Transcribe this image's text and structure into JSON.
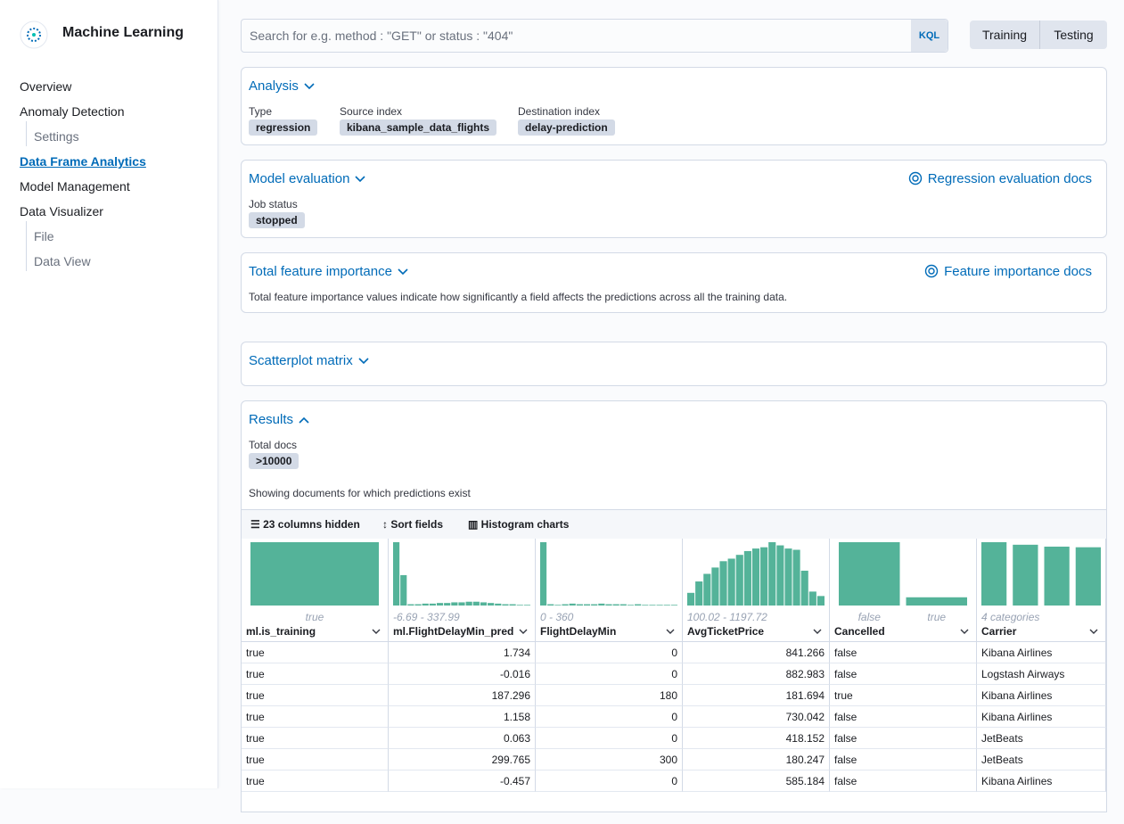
{
  "sidebar": {
    "app_title": "Machine Learning",
    "nav": [
      "Overview",
      "Anomaly Detection",
      "Settings",
      "Data Frame Analytics",
      "Model Management",
      "Data Visualizer",
      "File",
      "Data View"
    ]
  },
  "search": {
    "placeholder": "Search for e.g. method : \"GET\" or status : \"404\"",
    "language": "KQL",
    "filters": [
      "Training",
      "Testing"
    ]
  },
  "analysis": {
    "title": "Analysis",
    "fields": [
      {
        "label": "Type",
        "value": "regression"
      },
      {
        "label": "Source index",
        "value": "kibana_sample_data_flights"
      },
      {
        "label": "Destination index",
        "value": "delay-prediction"
      }
    ]
  },
  "model_evaluation": {
    "title": "Model evaluation",
    "link": "Regression evaluation docs",
    "status_label": "Job status",
    "status": "stopped"
  },
  "feature_importance": {
    "title": "Total feature importance",
    "link": "Feature importance docs",
    "description": "Total feature importance values indicate how significantly a field affects the predictions across all the training data."
  },
  "scatterplot": {
    "title": "Scatterplot matrix"
  },
  "results": {
    "title": "Results",
    "total_label": "Total docs",
    "total": ">10000",
    "note": "Showing documents for which predictions exist",
    "toolbar": [
      "23 columns hidden",
      "Sort fields",
      "Histogram charts"
    ],
    "columns": [
      {
        "name": "ml.is_training",
        "labels": [
          "true"
        ],
        "histogram": [
          100
        ]
      },
      {
        "name": "ml.FlightDelayMin_prediction",
        "labels": [
          "-6.69 - 337.99"
        ],
        "histogram": [
          100,
          48,
          2,
          2,
          3,
          3,
          4,
          4,
          5,
          5,
          6,
          6,
          5,
          4,
          3,
          2,
          2,
          1,
          1
        ]
      },
      {
        "name": "FlightDelayMin",
        "labels": [
          "0 - 360"
        ],
        "histogram": [
          100,
          2,
          1,
          2,
          3,
          2,
          2,
          2,
          3,
          2,
          2,
          2,
          1,
          2,
          1,
          1,
          1,
          1,
          1
        ]
      },
      {
        "name": "AvgTicketPrice",
        "labels": [
          "100.02 - 1197.72"
        ],
        "histogram": [
          20,
          38,
          50,
          60,
          70,
          74,
          80,
          86,
          90,
          92,
          100,
          95,
          90,
          88,
          55,
          22,
          15
        ]
      },
      {
        "name": "Cancelled",
        "labels": [
          "false",
          "true"
        ],
        "histogram": [
          100,
          13
        ]
      },
      {
        "name": "Carrier",
        "labels": [
          "4 categories"
        ],
        "histogram": [
          100,
          96,
          93,
          92
        ]
      }
    ],
    "rows": [
      [
        "true",
        1.734,
        0,
        841.266,
        "false",
        "Kibana Airlines"
      ],
      [
        "true",
        -0.016,
        0,
        882.983,
        "false",
        "Logstash Airways"
      ],
      [
        "true",
        187.296,
        180,
        181.694,
        "true",
        "Kibana Airlines"
      ],
      [
        "true",
        1.158,
        0,
        730.042,
        "false",
        "Kibana Airlines"
      ],
      [
        "true",
        0.063,
        0,
        418.152,
        "false",
        "JetBeats"
      ],
      [
        "true",
        299.765,
        300,
        180.247,
        "false",
        "JetBeats"
      ],
      [
        "true",
        -0.457,
        0,
        585.184,
        "false",
        "Kibana Airlines"
      ]
    ]
  }
}
